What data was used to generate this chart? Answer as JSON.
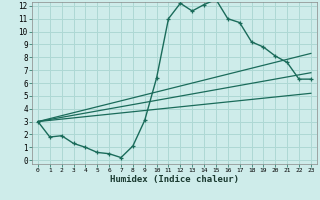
{
  "xlabel": "Humidex (Indice chaleur)",
  "bg_color": "#ceecea",
  "grid_color": "#aed8d4",
  "line_color": "#1a6b5a",
  "xlim": [
    -0.5,
    23.5
  ],
  "ylim": [
    -0.3,
    12.3
  ],
  "xticks": [
    0,
    1,
    2,
    3,
    4,
    5,
    6,
    7,
    8,
    9,
    10,
    11,
    12,
    13,
    14,
    15,
    16,
    17,
    18,
    19,
    20,
    21,
    22,
    23
  ],
  "yticks": [
    0,
    1,
    2,
    3,
    4,
    5,
    6,
    7,
    8,
    9,
    10,
    11,
    12
  ],
  "curve1_x": [
    0,
    1,
    2,
    3,
    4,
    5,
    6,
    7,
    8,
    9,
    10,
    11,
    12,
    13,
    14,
    15,
    16,
    17,
    18,
    19,
    20,
    21,
    22,
    23
  ],
  "curve1_y": [
    3.0,
    1.8,
    1.9,
    1.3,
    1.0,
    0.6,
    0.5,
    0.2,
    1.1,
    3.1,
    6.4,
    11.0,
    12.2,
    11.6,
    12.1,
    12.5,
    11.0,
    10.7,
    9.2,
    8.8,
    8.1,
    7.6,
    6.3,
    6.3
  ],
  "line1_x": [
    0,
    23
  ],
  "line1_y": [
    3.0,
    8.3
  ],
  "line2_x": [
    0,
    23
  ],
  "line2_y": [
    3.0,
    6.8
  ],
  "line3_x": [
    0,
    23
  ],
  "line3_y": [
    3.0,
    5.2
  ]
}
